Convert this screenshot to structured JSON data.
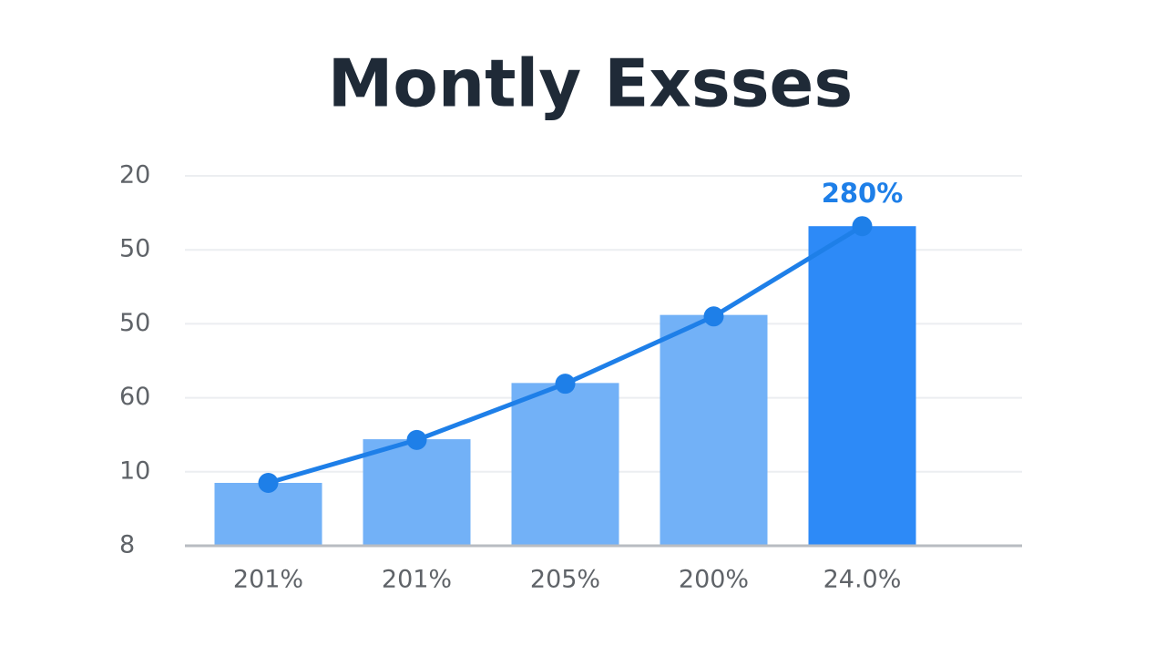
{
  "chart_data": {
    "type": "bar_line",
    "title": "Montly Exsses",
    "categories": [
      "201%",
      "201%",
      "205%",
      "200%",
      "24.0%"
    ],
    "bars": {
      "values": [
        0.85,
        1.44,
        2.2,
        3.12,
        4.32
      ],
      "colors": [
        "#72b1f7",
        "#72b1f7",
        "#72b1f7",
        "#72b1f7",
        "#2d8af7"
      ]
    },
    "line": {
      "values": [
        0.85,
        1.43,
        2.19,
        3.1,
        4.32
      ],
      "color": "#1e7fe8"
    },
    "annotation": "280%",
    "ylim": [
      0,
      5
    ],
    "yticks": [
      {
        "value": 0,
        "label": "8"
      },
      {
        "value": 1,
        "label": "10"
      },
      {
        "value": 2,
        "label": "60"
      },
      {
        "value": 3,
        "label": "50"
      },
      {
        "value": 4,
        "label": "50"
      },
      {
        "value": 5,
        "label": "20"
      }
    ],
    "grid": true
  }
}
